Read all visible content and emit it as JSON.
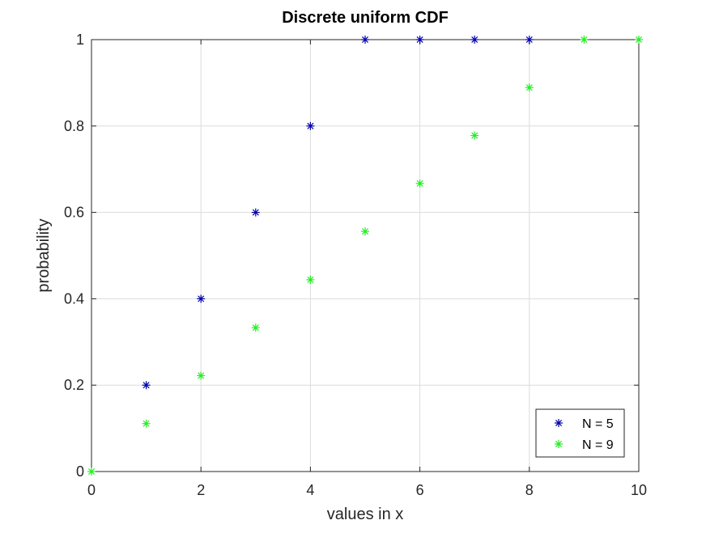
{
  "chart_data": {
    "type": "scatter",
    "title": "Discrete uniform CDF",
    "xlabel": "values in x",
    "ylabel": "probability",
    "xlim": [
      0,
      10
    ],
    "ylim": [
      0,
      1
    ],
    "x_ticks": [
      "0",
      "2",
      "4",
      "6",
      "8",
      "10"
    ],
    "y_ticks": [
      "0",
      "0.2",
      "0.4",
      "0.6",
      "0.8",
      "1"
    ],
    "grid": true,
    "marker": "asterisk",
    "legend_position": "bottom-right",
    "series": [
      {
        "name": "N = 5",
        "color": "#0000a8",
        "x": [
          1,
          2,
          3,
          4,
          5,
          6,
          7,
          8
        ],
        "y": [
          0.2,
          0.4,
          0.6,
          0.8,
          1,
          1,
          1,
          1
        ]
      },
      {
        "name": "N = 9",
        "color": "#22ee22",
        "x": [
          0,
          1,
          2,
          3,
          4,
          5,
          6,
          7,
          8,
          9,
          10
        ],
        "y": [
          0,
          0.111,
          0.222,
          0.333,
          0.444,
          0.556,
          0.667,
          0.778,
          0.889,
          1,
          1
        ]
      }
    ]
  }
}
